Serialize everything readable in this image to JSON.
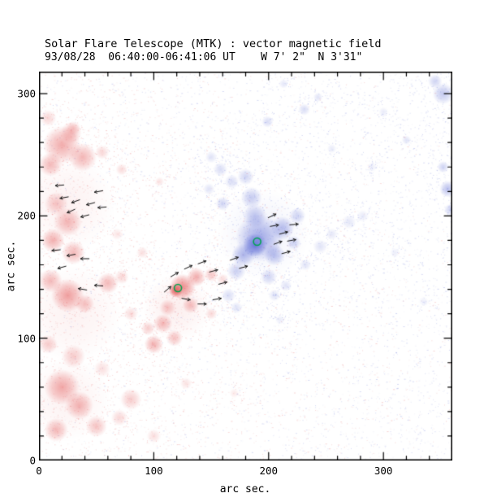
{
  "chart_data": {
    "type": "heatmap",
    "title": "Solar Flare Telescope (MTK) : vector magnetic field",
    "subtitle": "93/08/28  06:40:00-06:41:06 UT    W 7' 2\"  N 3'31\"",
    "xlabel": "arc sec.",
    "ylabel": "arc sec.",
    "xlim": [
      0,
      360
    ],
    "ylim": [
      0,
      318
    ],
    "x_ticks": [
      0,
      100,
      200,
      300
    ],
    "y_ticks": [
      0,
      100,
      200,
      300
    ],
    "minor_tick_step": 20,
    "colors": {
      "negative_red": "#e14646",
      "positive_blue": "#5060d2",
      "marker_green": "#00a550",
      "axis": "#000000",
      "background": "#ffffff"
    },
    "blob_format": [
      "polarity",
      "x_arcsec",
      "y_arcsec",
      "radius_arcsec",
      "peak_alpha"
    ],
    "blobs": [
      [
        "-",
        25,
        210,
        40,
        0.07
      ],
      [
        "-",
        30,
        120,
        40,
        0.07
      ],
      [
        "-",
        25,
        50,
        35,
        0.07
      ],
      [
        "-",
        120,
        125,
        28,
        0.09
      ],
      [
        "+",
        195,
        185,
        38,
        0.08
      ],
      [
        "-",
        20,
        258,
        16,
        0.45
      ],
      [
        "-",
        38,
        248,
        12,
        0.4
      ],
      [
        "-",
        10,
        242,
        10,
        0.38
      ],
      [
        "-",
        28,
        268,
        9,
        0.32
      ],
      [
        "-",
        55,
        252,
        6,
        0.22
      ],
      [
        "-",
        8,
        280,
        7,
        0.22
      ],
      [
        "-",
        30,
        272,
        6,
        0.2
      ],
      [
        "-",
        15,
        210,
        10,
        0.3
      ],
      [
        "-",
        25,
        195,
        12,
        0.38
      ],
      [
        "-",
        12,
        180,
        10,
        0.42
      ],
      [
        "-",
        30,
        170,
        10,
        0.38
      ],
      [
        "-",
        25,
        135,
        14,
        0.5
      ],
      [
        "-",
        10,
        147,
        10,
        0.38
      ],
      [
        "-",
        40,
        128,
        8,
        0.33
      ],
      [
        "-",
        60,
        145,
        9,
        0.38
      ],
      [
        "-",
        72,
        150,
        6,
        0.22
      ],
      [
        "-",
        125,
        142,
        11,
        0.6
      ],
      [
        "-",
        119,
        139,
        6,
        0.8
      ],
      [
        "-",
        137,
        150,
        8,
        0.45
      ],
      [
        "-",
        150,
        152,
        6,
        0.3
      ],
      [
        "-",
        132,
        127,
        7,
        0.35
      ],
      [
        "-",
        112,
        125,
        7,
        0.3
      ],
      [
        "-",
        108,
        112,
        8,
        0.38
      ],
      [
        "-",
        118,
        100,
        7,
        0.33
      ],
      [
        "-",
        100,
        95,
        8,
        0.42
      ],
      [
        "-",
        95,
        108,
        6,
        0.27
      ],
      [
        "-",
        20,
        60,
        15,
        0.45
      ],
      [
        "-",
        35,
        45,
        12,
        0.4
      ],
      [
        "-",
        15,
        25,
        10,
        0.38
      ],
      [
        "-",
        50,
        28,
        9,
        0.32
      ],
      [
        "-",
        30,
        85,
        10,
        0.28
      ],
      [
        "-",
        8,
        95,
        8,
        0.28
      ],
      [
        "-",
        80,
        50,
        9,
        0.28
      ],
      [
        "-",
        70,
        35,
        7,
        0.22
      ],
      [
        "-",
        100,
        20,
        6,
        0.18
      ],
      [
        "-",
        55,
        75,
        7,
        0.18
      ],
      [
        "-",
        90,
        170,
        5,
        0.18
      ],
      [
        "-",
        68,
        185,
        5,
        0.14
      ],
      [
        "-",
        72,
        238,
        5,
        0.2
      ],
      [
        "-",
        105,
        228,
        4,
        0.16
      ],
      [
        "-",
        150,
        120,
        5,
        0.22
      ],
      [
        "-",
        160,
        148,
        5,
        0.2
      ],
      [
        "-",
        128,
        63,
        5,
        0.16
      ],
      [
        "-",
        170,
        55,
        4,
        0.12
      ],
      [
        "-",
        80,
        120,
        6,
        0.2
      ],
      [
        "+",
        192,
        182,
        20,
        0.5
      ],
      [
        "+",
        188,
        176,
        10,
        0.75
      ],
      [
        "+",
        178,
        168,
        10,
        0.45
      ],
      [
        "+",
        205,
        168,
        9,
        0.4
      ],
      [
        "+",
        212,
        190,
        10,
        0.4
      ],
      [
        "+",
        188,
        200,
        10,
        0.35
      ],
      [
        "+",
        172,
        155,
        8,
        0.3
      ],
      [
        "+",
        200,
        150,
        7,
        0.27
      ],
      [
        "+",
        225,
        200,
        7,
        0.27
      ],
      [
        "+",
        222,
        178,
        6,
        0.27
      ],
      [
        "+",
        185,
        215,
        9,
        0.32
      ],
      [
        "+",
        180,
        232,
        7,
        0.27
      ],
      [
        "+",
        168,
        228,
        6,
        0.22
      ],
      [
        "+",
        158,
        238,
        6,
        0.22
      ],
      [
        "+",
        150,
        248,
        5,
        0.18
      ],
      [
        "+",
        160,
        210,
        6,
        0.27
      ],
      [
        "+",
        148,
        222,
        5,
        0.18
      ],
      [
        "+",
        165,
        135,
        6,
        0.22
      ],
      [
        "+",
        172,
        125,
        5,
        0.18
      ],
      [
        "+",
        205,
        135,
        5,
        0.18
      ],
      [
        "+",
        215,
        143,
        5,
        0.18
      ],
      [
        "+",
        232,
        160,
        5,
        0.18
      ],
      [
        "+",
        245,
        175,
        6,
        0.18
      ],
      [
        "+",
        255,
        185,
        5,
        0.15
      ],
      [
        "+",
        270,
        195,
        6,
        0.15
      ],
      [
        "+",
        282,
        200,
        5,
        0.13
      ],
      [
        "+",
        199,
        277,
        5,
        0.22
      ],
      [
        "+",
        231,
        287,
        5,
        0.22
      ],
      [
        "+",
        243,
        297,
        4,
        0.18
      ],
      [
        "+",
        213,
        308,
        4,
        0.15
      ],
      [
        "+",
        352,
        300,
        9,
        0.35
      ],
      [
        "+",
        345,
        310,
        6,
        0.28
      ],
      [
        "+",
        356,
        222,
        7,
        0.4
      ],
      [
        "+",
        352,
        240,
        5,
        0.28
      ],
      [
        "+",
        358,
        205,
        5,
        0.28
      ],
      [
        "+",
        320,
        262,
        4,
        0.18
      ],
      [
        "+",
        300,
        285,
        4,
        0.13
      ],
      [
        "+",
        255,
        255,
        4,
        0.13
      ],
      [
        "+",
        290,
        240,
        4,
        0.11
      ],
      [
        "+",
        310,
        170,
        4,
        0.11
      ],
      [
        "+",
        335,
        130,
        4,
        0.1
      ],
      [
        "+",
        210,
        115,
        4,
        0.12
      ]
    ],
    "vector_format": [
      "x_arcsec",
      "y_arcsec",
      "angle_deg_ccw_from_east"
    ],
    "vector_length_arcsec": 7,
    "vectors": [
      [
        22,
        215,
        190
      ],
      [
        32,
        212,
        200
      ],
      [
        45,
        210,
        195
      ],
      [
        55,
        207,
        185
      ],
      [
        28,
        204,
        205
      ],
      [
        40,
        200,
        195
      ],
      [
        18,
        225,
        185
      ],
      [
        52,
        220,
        190
      ],
      [
        15,
        172,
        185
      ],
      [
        28,
        168,
        190
      ],
      [
        40,
        165,
        180
      ],
      [
        20,
        158,
        195
      ],
      [
        38,
        140,
        170
      ],
      [
        52,
        143,
        175
      ],
      [
        118,
        152,
        30
      ],
      [
        130,
        158,
        25
      ],
      [
        142,
        162,
        20
      ],
      [
        152,
        155,
        15
      ],
      [
        128,
        132,
        350
      ],
      [
        142,
        128,
        0
      ],
      [
        155,
        132,
        10
      ],
      [
        160,
        145,
        15
      ],
      [
        112,
        140,
        40
      ],
      [
        205,
        192,
        10
      ],
      [
        213,
        186,
        15
      ],
      [
        220,
        180,
        10
      ],
      [
        208,
        178,
        20
      ],
      [
        215,
        170,
        15
      ],
      [
        203,
        200,
        25
      ],
      [
        222,
        193,
        5
      ],
      [
        170,
        165,
        20
      ],
      [
        178,
        158,
        15
      ]
    ],
    "markers": [
      {
        "x": 190,
        "y": 179,
        "shape": "circle",
        "color": "#00a550"
      },
      {
        "x": 121,
        "y": 141,
        "shape": "circle",
        "color": "#00a550"
      }
    ],
    "noise": {
      "count_uniform": 6500,
      "count_clustered": 2600,
      "seed": 7
    }
  }
}
